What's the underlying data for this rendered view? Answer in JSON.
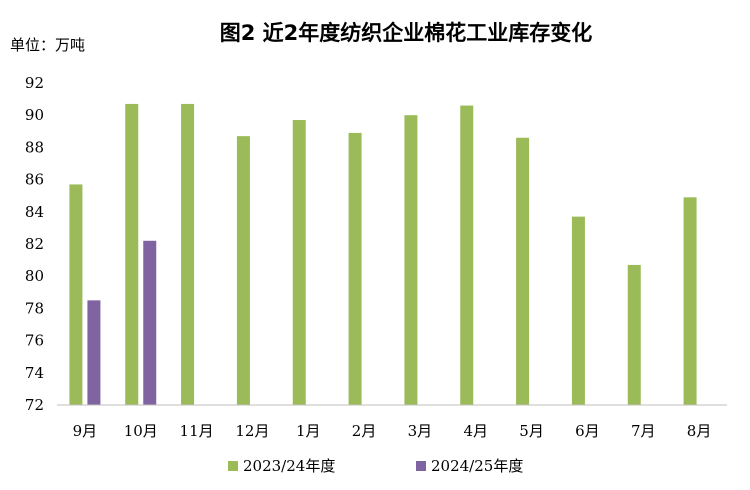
{
  "chart_data": {
    "type": "bar",
    "title": "图2  近2年度纺织企业棉花工业库存变化",
    "unit_label": "单位：万吨",
    "categories": [
      "9月",
      "10月",
      "11月",
      "12月",
      "1月",
      "2月",
      "3月",
      "4月",
      "5月",
      "6月",
      "7月",
      "8月"
    ],
    "series": [
      {
        "name": "2023/24年度",
        "color": "#9BBB59",
        "values": [
          85.7,
          90.7,
          90.7,
          88.7,
          89.7,
          88.9,
          90.0,
          90.6,
          88.6,
          83.7,
          80.7,
          84.9
        ]
      },
      {
        "name": "2024/25年度",
        "color": "#8064A2",
        "values": [
          78.5,
          82.2,
          null,
          null,
          null,
          null,
          null,
          null,
          null,
          null,
          null,
          null
        ]
      }
    ],
    "ylim": [
      72,
      92
    ],
    "yticks": [
      72,
      74,
      76,
      78,
      80,
      82,
      84,
      86,
      88,
      90,
      92
    ],
    "grid": false,
    "legend_position": "bottom"
  }
}
